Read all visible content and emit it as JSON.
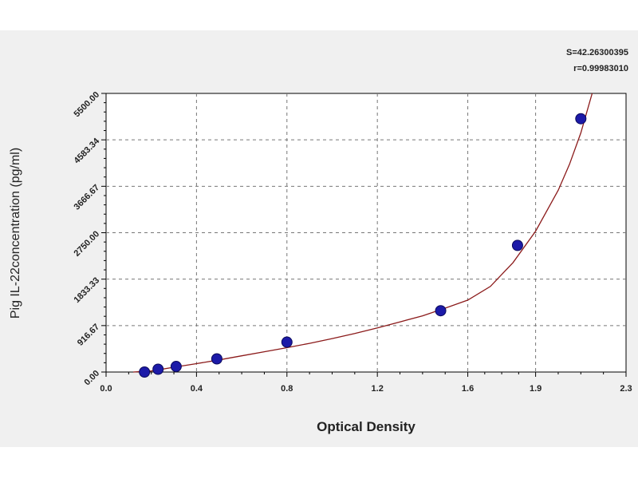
{
  "chart_data": {
    "type": "scatter",
    "title": "",
    "xlabel": "Optical Density",
    "ylabel": "Pig IL-22concentration (pg/ml)",
    "xlim": [
      0.0,
      2.3
    ],
    "ylim": [
      0.0,
      5500.0
    ],
    "x_ticks": [
      "0.0",
      "0.4",
      "0.8",
      "1.2",
      "1.6",
      "1.9",
      "2.3"
    ],
    "x_tick_values": [
      0.0,
      0.4,
      0.8,
      1.2,
      1.6,
      1.9,
      2.3
    ],
    "y_ticks": [
      "0.00",
      "916.67",
      "1833.33",
      "2750.00",
      "3666.67",
      "4583.34",
      "5500.00"
    ],
    "y_tick_values": [
      0.0,
      916.67,
      1833.33,
      2750.0,
      3666.67,
      4583.34,
      5500.0
    ],
    "grid": true,
    "stats": {
      "s_label": "S=42.26300395",
      "r_label": "r=0.99983010"
    },
    "series": [
      {
        "points": [
          {
            "x": 0.17,
            "y": 0
          },
          {
            "x": 0.23,
            "y": 55
          },
          {
            "x": 0.31,
            "y": 110
          },
          {
            "x": 0.49,
            "y": 260
          },
          {
            "x": 0.8,
            "y": 590
          },
          {
            "x": 1.48,
            "y": 1210
          },
          {
            "x": 1.82,
            "y": 2500
          },
          {
            "x": 2.1,
            "y": 5000
          }
        ],
        "fit_curve": [
          [
            0.12,
            -45
          ],
          [
            0.2,
            20
          ],
          [
            0.3,
            95
          ],
          [
            0.4,
            165
          ],
          [
            0.5,
            240
          ],
          [
            0.6,
            320
          ],
          [
            0.7,
            400
          ],
          [
            0.8,
            480
          ],
          [
            0.9,
            565
          ],
          [
            1.0,
            660
          ],
          [
            1.1,
            760
          ],
          [
            1.2,
            870
          ],
          [
            1.3,
            990
          ],
          [
            1.4,
            1110
          ],
          [
            1.5,
            1260
          ],
          [
            1.6,
            1420
          ],
          [
            1.7,
            1690
          ],
          [
            1.8,
            2160
          ],
          [
            1.9,
            2780
          ],
          [
            2.0,
            3590
          ],
          [
            2.05,
            4100
          ],
          [
            2.1,
            4720
          ],
          [
            2.15,
            5500
          ]
        ],
        "marker_color": "#1c1aa8",
        "curve_color": "#8b1a1a"
      }
    ]
  }
}
